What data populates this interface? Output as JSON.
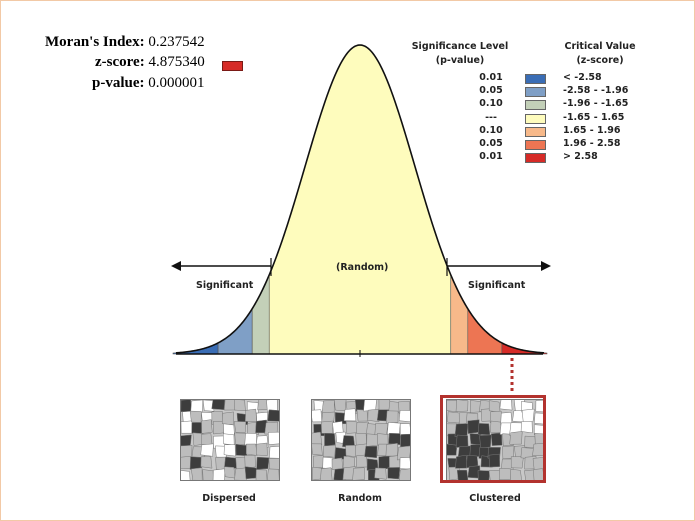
{
  "stats": {
    "morans_label": "Moran's Index:",
    "morans_value": "0.237542",
    "zscore_label": "z-score:",
    "zscore_value": "4.875340",
    "pvalue_label": "p-value:",
    "pvalue_value": "0.000001"
  },
  "legend": {
    "sig_header_1": "Significance Level",
    "sig_header_2": "(p-value)",
    "crit_header_1": "Critical Value",
    "crit_header_2": "(z-score)",
    "rows": [
      {
        "p": "0.01",
        "z": "< -2.58",
        "color": "#3a6db5"
      },
      {
        "p": "0.05",
        "z": "-2.58 - -1.96",
        "color": "#7f9fc6"
      },
      {
        "p": "0.10",
        "z": "-1.96 - -1.65",
        "color": "#c3d0b8"
      },
      {
        "p": "---",
        "z": "-1.65 - 1.65",
        "color": "#fefcbd"
      },
      {
        "p": "0.10",
        "z": "1.65 - 1.96",
        "color": "#f7b98a"
      },
      {
        "p": "0.05",
        "z": "1.96 - 2.58",
        "color": "#ed7553"
      },
      {
        "p": "0.01",
        "z": "> 2.58",
        "color": "#d62b27"
      }
    ]
  },
  "curve": {
    "left_label": "Significant",
    "center_label": "(Random)",
    "right_label": "Significant"
  },
  "maps": {
    "dispersed": "Dispersed",
    "random": "Random",
    "clustered": "Clustered"
  },
  "colors": {
    "highlight": "#b3322e",
    "map_dark": "#3d3d3d",
    "map_mid": "#bdbdbd",
    "map_light": "#ffffff"
  }
}
